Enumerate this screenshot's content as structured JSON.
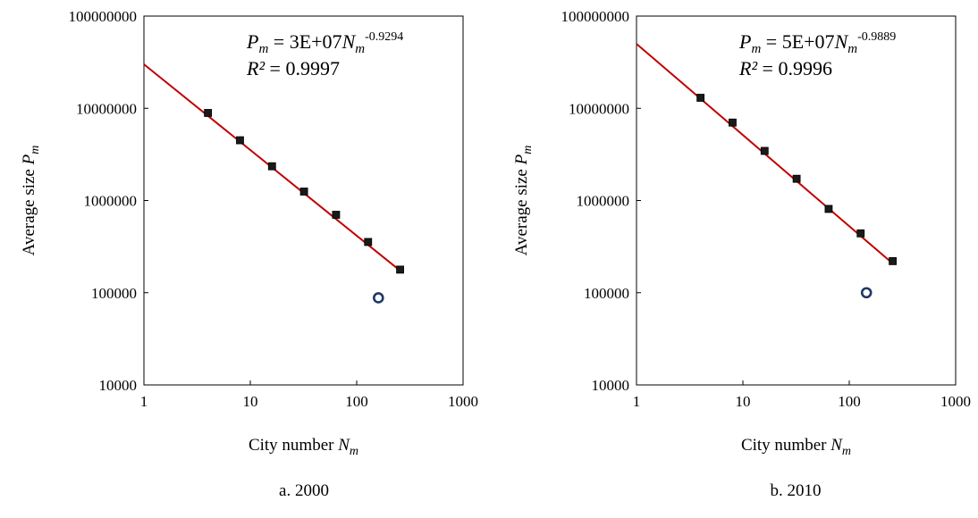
{
  "chart_data": [
    {
      "type": "scatter",
      "caption": "a. 2000",
      "x_scale": "log",
      "y_scale": "log",
      "xlim": [
        1,
        1000
      ],
      "ylim": [
        10000,
        100000000
      ],
      "x_ticks": [
        1,
        10,
        100,
        1000
      ],
      "y_ticks": [
        10000,
        100000,
        1000000,
        10000000,
        100000000
      ],
      "x_tick_labels": [
        "1",
        "10",
        "100",
        "1000"
      ],
      "y_tick_labels": [
        "10000",
        "100000",
        "1000000",
        "10000000",
        "100000000"
      ],
      "xlabel": {
        "main": "City number ",
        "var": "N",
        "sub": "m"
      },
      "ylabel": {
        "main": "Average size ",
        "var": "P",
        "sub": "m"
      },
      "equation": {
        "lhs": "P",
        "lhs_sub": "m",
        "mid": " = 3E+07",
        "var": "N",
        "var_sub": "m",
        "exp": "-0.9294"
      },
      "r2": {
        "label": "R²",
        "value": " = 0.9997"
      },
      "fit": {
        "coef": 30000000,
        "exponent": -0.9294,
        "x_range": [
          1,
          256
        ],
        "color": "#c00000"
      },
      "series": [
        {
          "marker": "square",
          "x": [
            4,
            8,
            16,
            32,
            64,
            128,
            256
          ],
          "y": [
            8900000,
            4500000,
            2350000,
            1250000,
            700000,
            355000,
            178000
          ]
        },
        {
          "marker": "open-circle",
          "x": [
            160
          ],
          "y": [
            88000
          ]
        }
      ]
    },
    {
      "type": "scatter",
      "caption": "b. 2010",
      "x_scale": "log",
      "y_scale": "log",
      "xlim": [
        1,
        1000
      ],
      "ylim": [
        10000,
        100000000
      ],
      "x_ticks": [
        1,
        10,
        100,
        1000
      ],
      "y_ticks": [
        10000,
        100000,
        1000000,
        10000000,
        100000000
      ],
      "x_tick_labels": [
        "1",
        "10",
        "100",
        "1000"
      ],
      "y_tick_labels": [
        "10000",
        "100000",
        "1000000",
        "10000000",
        "100000000"
      ],
      "xlabel": {
        "main": "City number ",
        "var": "N",
        "sub": "m"
      },
      "ylabel": {
        "main": "Average size ",
        "var": "P",
        "sub": "m"
      },
      "equation": {
        "lhs": "P",
        "lhs_sub": "m",
        "mid": " = 5E+07",
        "var": "N",
        "var_sub": "m",
        "exp": "-0.9889"
      },
      "r2": {
        "label": "R²",
        "value": " = 0.9996"
      },
      "fit": {
        "coef": 50000000,
        "exponent": -0.9889,
        "x_range": [
          1,
          256
        ],
        "color": "#c00000"
      },
      "series": [
        {
          "marker": "square",
          "x": [
            4,
            8,
            16,
            32,
            64,
            128,
            256
          ],
          "y": [
            13000000,
            7000000,
            3450000,
            1720000,
            810000,
            440000,
            220000
          ]
        },
        {
          "marker": "open-circle",
          "x": [
            145
          ],
          "y": [
            100000
          ]
        }
      ]
    }
  ],
  "colors": {
    "fit_line": "#c00000",
    "square_marker": "#1a1a1a",
    "open_circle": "#1f3864",
    "axis": "#000000"
  }
}
